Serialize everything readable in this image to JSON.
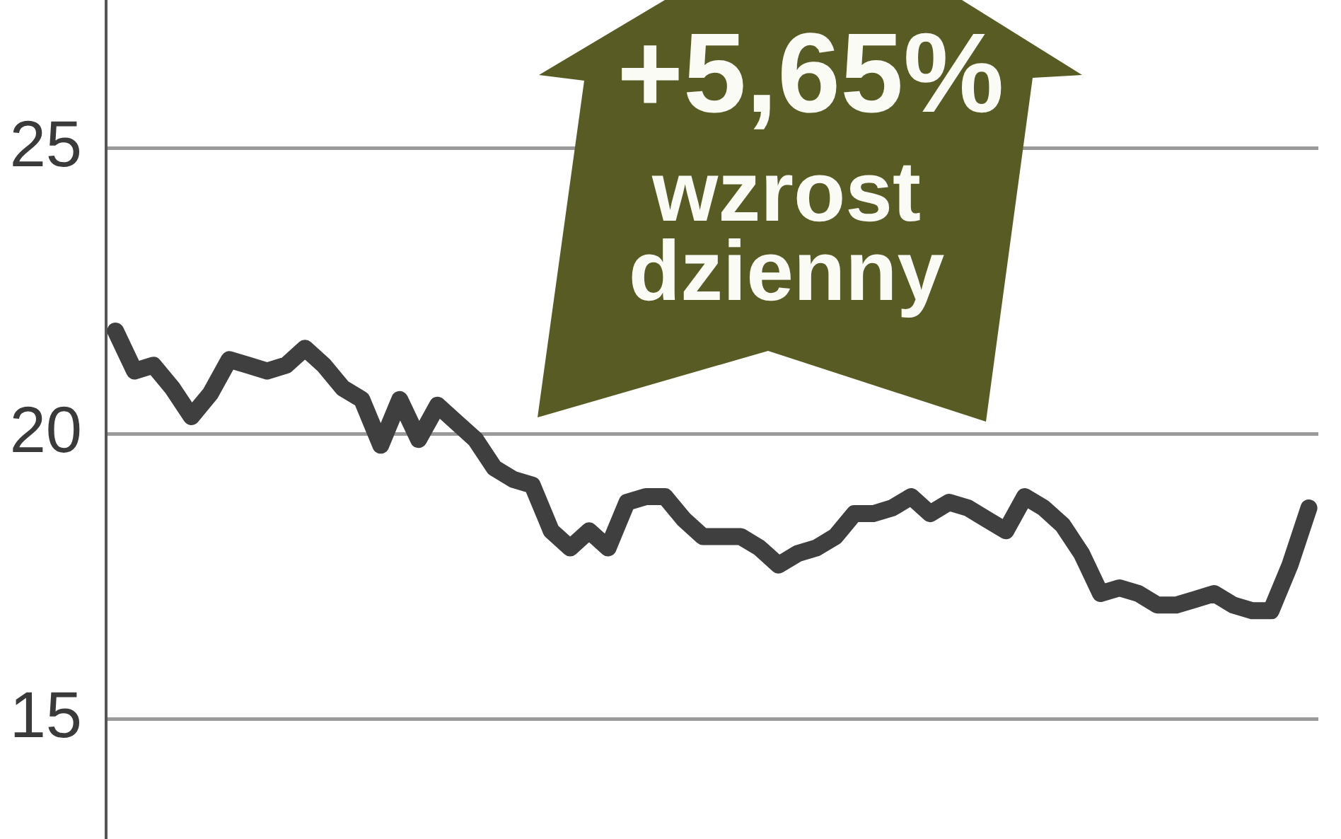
{
  "chart_data": {
    "type": "line",
    "categories": [
      null,
      null,
      null,
      null,
      null,
      null,
      null,
      null,
      null,
      null,
      null,
      null,
      null,
      null,
      null,
      null,
      null,
      null,
      null,
      null,
      null,
      null,
      null,
      null,
      null,
      null,
      null,
      null,
      null,
      null,
      null,
      null,
      null,
      null,
      null,
      null,
      null,
      null,
      null,
      null,
      null,
      null,
      null,
      null,
      null,
      null,
      null,
      null,
      null,
      null,
      null,
      null,
      null,
      null,
      null,
      null,
      null,
      null,
      null,
      null,
      null,
      null,
      null,
      null
    ],
    "series": [
      {
        "color": "#3f3f3f",
        "values": [
          21.8,
          21.1,
          21.2,
          20.8,
          20.3,
          20.7,
          21.3,
          21.2,
          21.1,
          21.2,
          21.5,
          21.2,
          20.8,
          20.6,
          19.8,
          20.6,
          19.9,
          20.5,
          20.2,
          19.9,
          19.4,
          19.2,
          19.1,
          18.3,
          18.0,
          18.3,
          18.0,
          18.8,
          18.9,
          18.9,
          18.5,
          18.2,
          18.2,
          18.2,
          18.0,
          17.7,
          17.9,
          18.0,
          18.2,
          18.6,
          18.6,
          18.7,
          18.9,
          18.6,
          18.8,
          18.7,
          18.5,
          18.3,
          18.9,
          18.7,
          18.4,
          17.9,
          17.2,
          17.3,
          17.2,
          17.0,
          17.0,
          17.1,
          17.2,
          17.0,
          16.9,
          16.9,
          17.7,
          18.7
        ]
      }
    ],
    "ylim": [
      12.9,
      27.6
    ],
    "yticks": [
      15,
      20,
      25
    ],
    "grid": "y",
    "tick_labels": "y",
    "marker": "none",
    "line_style": "solid",
    "annotations": [
      "+5,65%",
      "wzrost dzienny"
    ]
  }
}
